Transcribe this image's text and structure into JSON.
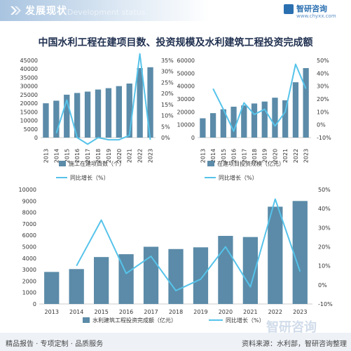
{
  "header": {
    "title": "发展现状",
    "watermark": "Development status",
    "logo_name": "智研咨询",
    "logo_url": "www.chyxx.com"
  },
  "title": "中国水利工程在建项目数、投资规模及水利建筑工程投资完成额",
  "footer": {
    "left": "精品报告 · 专项定制 · 品质服务",
    "right": "资料来源：水利部，智研咨询整理",
    "watermark": "智研咨询"
  },
  "colors": {
    "bar": "#5b8ba8",
    "line": "#56c3ea",
    "header_blue": "#2a6fb0"
  },
  "chart_data": [
    {
      "type": "bar",
      "categories": [
        "2013",
        "2014",
        "2015",
        "2016",
        "2017",
        "2018",
        "2019",
        "2020",
        "2021",
        "2022",
        "2023"
      ],
      "series": [
        {
          "name": "施工在建项目数（个）",
          "type": "bar",
          "axis": "left",
          "values": [
            20000,
            21500,
            25000,
            26000,
            26800,
            28000,
            28800,
            30000,
            31500,
            40500,
            41000
          ]
        },
        {
          "name": "同比增长（%）",
          "type": "line",
          "axis": "right",
          "values": [
            null,
            2,
            17,
            0,
            -3,
            0,
            -1,
            -1,
            1,
            38,
            -1
          ]
        }
      ],
      "ylim_left": [
        0,
        45000
      ],
      "ylim_right": [
        0,
        35
      ],
      "yticks_left": [
        0,
        5000,
        10000,
        15000,
        20000,
        25000,
        30000,
        35000,
        40000,
        45000
      ],
      "yticks_right": [
        "0%",
        "5%",
        "10%",
        "15%",
        "20%",
        "25%",
        "30%",
        "35%"
      ]
    },
    {
      "type": "bar",
      "categories": [
        "2013",
        "2014",
        "2015",
        "2016",
        "2017",
        "2018",
        "2019",
        "2020",
        "2021",
        "2022",
        "2023"
      ],
      "series": [
        {
          "name": "在建项目投资规模（亿元）",
          "type": "bar",
          "axis": "left",
          "values": [
            15000,
            19000,
            22000,
            24000,
            25000,
            26500,
            28000,
            31000,
            29000,
            43000,
            54000
          ]
        },
        {
          "name": "同比增长（%）",
          "type": "line",
          "axis": "right",
          "values": [
            null,
            28,
            12,
            -5,
            17,
            8,
            12,
            -1,
            10,
            47,
            28
          ]
        }
      ],
      "ylim_left": [
        0,
        60000
      ],
      "ylim_right": [
        -10,
        50
      ],
      "yticks_left": [
        0,
        10000,
        20000,
        30000,
        40000,
        50000,
        60000
      ],
      "yticks_right": [
        "-10%",
        "0%",
        "10%",
        "20%",
        "30%",
        "40%",
        "50%"
      ]
    },
    {
      "type": "bar",
      "categories": [
        "2013",
        "2014",
        "2015",
        "2016",
        "2017",
        "2018",
        "2019",
        "2020",
        "2021",
        "2022",
        "2023"
      ],
      "series": [
        {
          "name": "水利建筑工程投资完成额（亿元）",
          "type": "bar",
          "axis": "left",
          "values": [
            2800,
            3050,
            4100,
            4350,
            5000,
            4800,
            4950,
            5950,
            5850,
            8500,
            9000
          ]
        },
        {
          "name": "同比增长（%）",
          "type": "line",
          "axis": "right",
          "values": [
            null,
            10,
            34,
            6,
            15,
            -3,
            3,
            20,
            -1,
            45,
            7
          ]
        }
      ],
      "ylim_left": [
        0,
        10000
      ],
      "ylim_right": [
        -10,
        50
      ],
      "yticks_left": [
        0,
        1000,
        2000,
        3000,
        4000,
        5000,
        6000,
        7000,
        8000,
        9000,
        10000
      ],
      "yticks_right": [
        "-10%",
        "0%",
        "10%",
        "20%",
        "30%",
        "40%",
        "50%"
      ]
    }
  ]
}
